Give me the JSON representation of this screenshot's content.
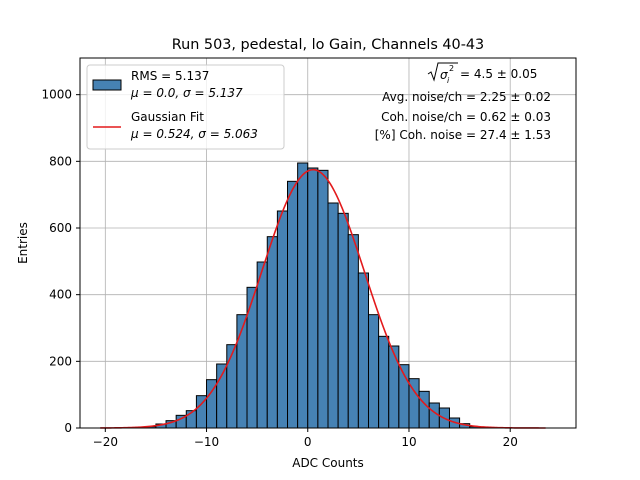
{
  "chart_data": {
    "type": "bar",
    "title": "Run 503, pedestal, lo Gain, Channels 40-43",
    "xlabel": "ADC Counts",
    "ylabel": "Entries",
    "xlim": [
      -22.5,
      26.5
    ],
    "ylim": [
      0,
      1110
    ],
    "xticks": [
      -20,
      -10,
      0,
      10,
      20
    ],
    "yticks": [
      0,
      200,
      400,
      600,
      800,
      1000
    ],
    "grid": true,
    "bin_width": 1,
    "histogram": {
      "name": "RMS = 5.137",
      "stats": "μ = 0.0, σ = 5.137",
      "color": "#4682b4",
      "bins": [
        {
          "left": -16,
          "count": 4
        },
        {
          "left": -15,
          "count": 12
        },
        {
          "left": -14,
          "count": 22
        },
        {
          "left": -13,
          "count": 38
        },
        {
          "left": -12,
          "count": 52
        },
        {
          "left": -11,
          "count": 97
        },
        {
          "left": -10,
          "count": 145
        },
        {
          "left": -9,
          "count": 192
        },
        {
          "left": -8,
          "count": 250
        },
        {
          "left": -7,
          "count": 340
        },
        {
          "left": -6,
          "count": 422
        },
        {
          "left": -5,
          "count": 498
        },
        {
          "left": -4,
          "count": 574
        },
        {
          "left": -3,
          "count": 651
        },
        {
          "left": -2,
          "count": 740
        },
        {
          "left": -1,
          "count": 795
        },
        {
          "left": 0,
          "count": 780
        },
        {
          "left": 1,
          "count": 773
        },
        {
          "left": 2,
          "count": 675
        },
        {
          "left": 3,
          "count": 644
        },
        {
          "left": 4,
          "count": 580
        },
        {
          "left": 5,
          "count": 465
        },
        {
          "left": 6,
          "count": 340
        },
        {
          "left": 7,
          "count": 275
        },
        {
          "left": 8,
          "count": 246
        },
        {
          "left": 9,
          "count": 190
        },
        {
          "left": 10,
          "count": 148
        },
        {
          "left": 11,
          "count": 110
        },
        {
          "left": 12,
          "count": 75
        },
        {
          "left": 13,
          "count": 60
        },
        {
          "left": 14,
          "count": 30
        },
        {
          "left": 15,
          "count": 13
        },
        {
          "left": 16,
          "count": 4
        }
      ]
    },
    "fit": {
      "name": "Gaussian Fit",
      "stats": "μ = 0.524, σ = 5.063",
      "mu": 0.524,
      "sigma": 5.063,
      "amplitude": 775,
      "x_range": [
        -20.5,
        23.5
      ],
      "color": "#e31a1c"
    },
    "legend_position": "upper left",
    "annotations": {
      "sigma_total_value": " = 4.5 ± 0.05",
      "avg_noise": "Avg. noise/ch = 2.25 ± 0.02",
      "coh_noise": "Coh. noise/ch = 0.62 ± 0.03",
      "coh_percent": "[%] Coh. noise = 27.4 ± 1.53"
    }
  }
}
